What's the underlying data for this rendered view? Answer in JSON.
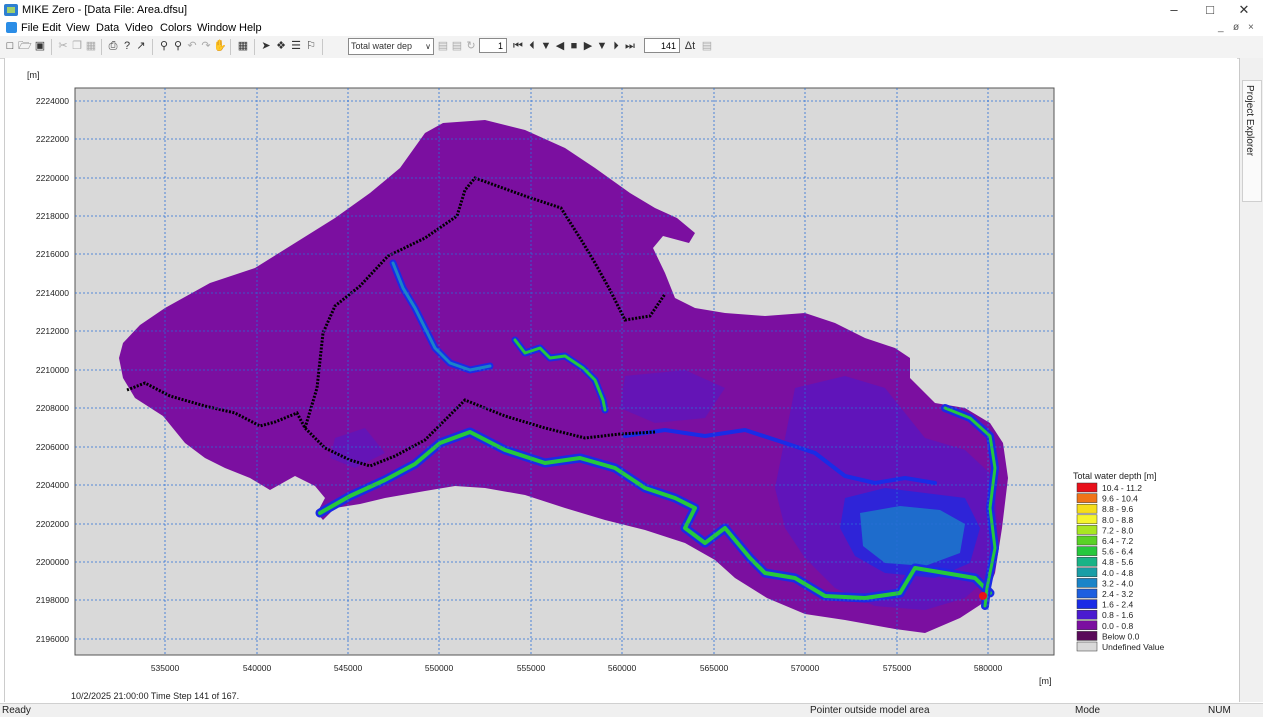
{
  "window": {
    "title": "MIKE Zero - [Data File: Area.dfsu]",
    "minimize": "–",
    "restore": "□",
    "close": "✕"
  },
  "menu": {
    "items": [
      "File",
      "Edit",
      "View",
      "Data",
      "Video",
      "Colors",
      "Window",
      "Help"
    ],
    "mdi_controls": [
      "_",
      "ø",
      "×"
    ]
  },
  "toolbar": {
    "item_combo": "Total water dep",
    "layer_value": "1",
    "timestep_value": "141",
    "dt_label": "Δt"
  },
  "side_panel": {
    "label": "Project Explorer"
  },
  "plot": {
    "y_unit": "[m]",
    "x_unit": "[m]",
    "y_ticks": [
      "2224000",
      "2222000",
      "2220000",
      "2218000",
      "2216000",
      "2214000",
      "2212000",
      "2210000",
      "2208000",
      "2206000",
      "2204000",
      "2202000",
      "2200000",
      "2198000",
      "2196000"
    ],
    "x_ticks": [
      "535000",
      "540000",
      "545000",
      "550000",
      "555000",
      "560000",
      "565000",
      "570000",
      "575000",
      "580000"
    ],
    "time_info": "10/2/2025 21:00:00  Time Step 141 of 167.",
    "colors": {
      "background": "#d9d9d9",
      "domain": "#7b0fa0",
      "grid": "#2a6fd6"
    }
  },
  "legend": {
    "title": "Total water depth [m]",
    "items": [
      {
        "label": "10.4 - 11.2",
        "color": "#e8101a"
      },
      {
        "label": "9.6 - 10.4",
        "color": "#f07418"
      },
      {
        "label": "8.8 -  9.6",
        "color": "#f5dd1a"
      },
      {
        "label": "8.0 -  8.8",
        "color": "#f5f52d"
      },
      {
        "label": "7.2 -  8.0",
        "color": "#a8e622"
      },
      {
        "label": "6.4 -  7.2",
        "color": "#5ad226"
      },
      {
        "label": "5.6 -  6.4",
        "color": "#26c83c"
      },
      {
        "label": "4.8 -  5.6",
        "color": "#19b386"
      },
      {
        "label": "4.0 -  4.8",
        "color": "#1a9ea6"
      },
      {
        "label": "3.2 -  4.0",
        "color": "#1a84c8"
      },
      {
        "label": "2.4 -  3.2",
        "color": "#1e5fe0"
      },
      {
        "label": "1.6 -  2.4",
        "color": "#1a2be6"
      },
      {
        "label": "0.8 -  1.6",
        "color": "#4a1ad0"
      },
      {
        "label": "0.0 -  0.8",
        "color": "#7b0fa0"
      },
      {
        "label": "Below  0.0",
        "color": "#5a0a5a"
      },
      {
        "label": "Undefined Value",
        "color": "#d9d9d9"
      }
    ]
  },
  "status": {
    "ready": "Ready",
    "pointer": "Pointer outside model area",
    "mode": "Mode",
    "num": "NUM"
  }
}
